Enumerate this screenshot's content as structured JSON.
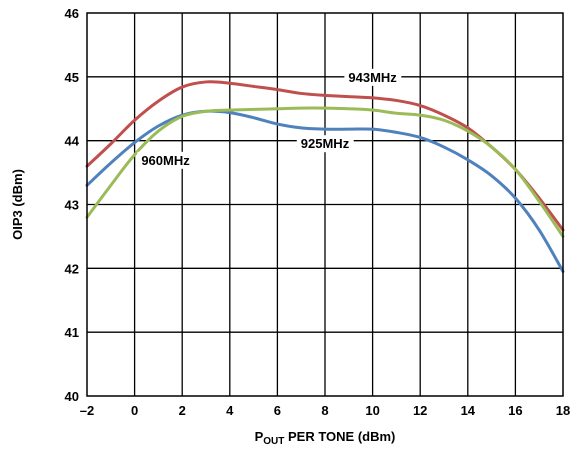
{
  "chart_data": {
    "type": "line",
    "title": "",
    "xlabel": {
      "main": "P",
      "subscript": "OUT",
      "rest": " PER TONE (dBm)"
    },
    "ylabel": "OIP3 (dBm)",
    "xlim": [
      -2,
      18
    ],
    "ylim": [
      40,
      46
    ],
    "xticks": [
      -2,
      0,
      2,
      4,
      6,
      8,
      10,
      12,
      14,
      16,
      18
    ],
    "xtick_labels": [
      "–2",
      "0",
      "2",
      "4",
      "6",
      "8",
      "10",
      "12",
      "14",
      "16",
      "18"
    ],
    "yticks": [
      40,
      41,
      42,
      43,
      44,
      45,
      46
    ],
    "ytick_labels": [
      "40",
      "41",
      "42",
      "43",
      "44",
      "45",
      "46"
    ],
    "grid": true,
    "legend": "none",
    "series": [
      {
        "name": "943MHz",
        "color": "#c0504d",
        "x": [
          -2,
          -1,
          0,
          1,
          2,
          3,
          4,
          5,
          6,
          7,
          8,
          9,
          10,
          11,
          12,
          13,
          14,
          15,
          16,
          17,
          18
        ],
        "y": [
          43.6,
          43.95,
          44.32,
          44.62,
          44.84,
          44.92,
          44.9,
          44.85,
          44.8,
          44.74,
          44.71,
          44.69,
          44.67,
          44.63,
          44.55,
          44.4,
          44.2,
          43.9,
          43.55,
          43.1,
          42.6
        ]
      },
      {
        "name": "925MHz",
        "color": "#4f81bd",
        "x": [
          -2,
          -1,
          0,
          1,
          2,
          3,
          4,
          5,
          6,
          7,
          8,
          9,
          10,
          11,
          12,
          13,
          14,
          15,
          16,
          17,
          18
        ],
        "y": [
          43.3,
          43.65,
          43.97,
          44.23,
          44.4,
          44.46,
          44.44,
          44.36,
          44.26,
          44.2,
          44.18,
          44.18,
          44.18,
          44.13,
          44.05,
          43.9,
          43.7,
          43.45,
          43.1,
          42.6,
          41.95
        ]
      },
      {
        "name": "960MHz",
        "color": "#9bbb59",
        "x": [
          -2,
          -1,
          0,
          1,
          2,
          3,
          4,
          5,
          6,
          7,
          8,
          9,
          10,
          11,
          12,
          13,
          14,
          15,
          16,
          17,
          18
        ],
        "y": [
          42.8,
          43.3,
          43.78,
          44.15,
          44.38,
          44.46,
          44.48,
          44.49,
          44.5,
          44.51,
          44.51,
          44.5,
          44.48,
          44.43,
          44.4,
          44.32,
          44.15,
          43.9,
          43.55,
          43.05,
          42.5
        ]
      }
    ],
    "annotations": [
      {
        "text": "943MHz",
        "x": 10,
        "y": 45.0
      },
      {
        "text": "925MHz",
        "x": 8,
        "y": 43.96
      },
      {
        "text": "960MHz",
        "x": 1.3,
        "y": 43.7
      }
    ]
  }
}
